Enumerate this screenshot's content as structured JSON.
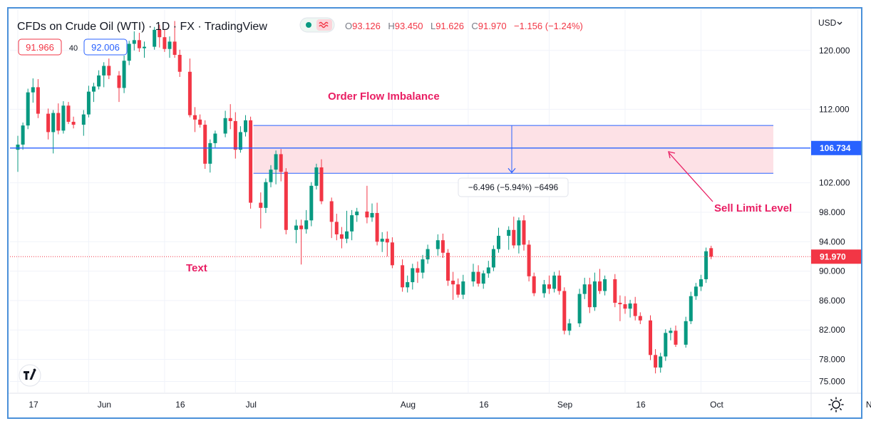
{
  "header": {
    "title": "CFDs on Crude Oil (WTI) · 1D · FX · TradingView",
    "o_label": "O",
    "o_value": "93.126",
    "h_label": "H",
    "h_value": "93.450",
    "l_label": "L",
    "l_value": "91.626",
    "c_label": "C",
    "c_value": "91.970",
    "change": "−1.156 (−1.24%)",
    "sell_price": "91.966",
    "spread": "40",
    "buy_price": "92.006",
    "currency": "USD",
    "live_icon": "live-dot-icon",
    "wave_icon": "wave-icon"
  },
  "colors": {
    "up": "#089981",
    "down": "#f23645",
    "zone_fill": "#fde1e6",
    "zone_line": "#2962ff",
    "annotation": "#e91e63",
    "frame": "#4a90d9"
  },
  "annotations": {
    "zone_label": "Order Flow Imbalance",
    "text_label": "Text",
    "sell_limit_label": "Sell Limit Level",
    "measure_label": "−6.496 (−5.94%) −6496",
    "price_line_label": "106.734",
    "last_price_label": "91.970"
  },
  "footer": {
    "logo": "tv-logo-icon",
    "settings_icon": "gear-icon"
  },
  "chart_data": {
    "type": "candlestick",
    "ylim": [
      73.5,
      125.5
    ],
    "y_ticks": [
      "120.000",
      "112.000",
      "102.000",
      "98.000",
      "94.000",
      "90.000",
      "86.000",
      "82.000",
      "78.000",
      "75.000"
    ],
    "y_tick_values": [
      120,
      112,
      102,
      98,
      94,
      90,
      86,
      82,
      78,
      75
    ],
    "x_ticks": [
      {
        "label": "17",
        "day": 0
      },
      {
        "label": "Jun",
        "day": 14
      },
      {
        "label": "16",
        "day": 29
      },
      {
        "label": "Jul",
        "day": 43
      },
      {
        "label": "Aug",
        "day": 74
      },
      {
        "label": "16",
        "day": 89
      },
      {
        "label": "Sep",
        "day": 105
      },
      {
        "label": "16",
        "day": 120
      },
      {
        "label": "Oct",
        "day": 135
      },
      {
        "label": "Nov",
        "day": 166
      }
    ],
    "zone": {
      "top": 109.8,
      "bottom": 103.3,
      "start_day": 46,
      "end_day": 160
    },
    "price_line": 106.734,
    "last_price": 91.97,
    "candles": [
      {
        "day": 0,
        "o": 106.5,
        "h": 108.4,
        "l": 103.5,
        "c": 107.2
      },
      {
        "day": 1,
        "o": 107.2,
        "h": 110.2,
        "l": 106.5,
        "c": 109.8
      },
      {
        "day": 2,
        "o": 109.8,
        "h": 114.8,
        "l": 109.3,
        "c": 114.3
      },
      {
        "day": 3,
        "o": 114.3,
        "h": 116.2,
        "l": 112.9,
        "c": 115.0
      },
      {
        "day": 4,
        "o": 115.0,
        "h": 116.1,
        "l": 110.8,
        "c": 111.4
      },
      {
        "day": 6,
        "o": 111.4,
        "h": 112.1,
        "l": 107.9,
        "c": 108.9
      },
      {
        "day": 7,
        "o": 108.9,
        "h": 111.9,
        "l": 106.0,
        "c": 111.5
      },
      {
        "day": 8,
        "o": 111.5,
        "h": 112.8,
        "l": 108.6,
        "c": 109.1
      },
      {
        "day": 9,
        "o": 109.1,
        "h": 113.1,
        "l": 108.7,
        "c": 112.5
      },
      {
        "day": 10,
        "o": 112.5,
        "h": 113.0,
        "l": 110.0,
        "c": 110.3
      },
      {
        "day": 11,
        "o": 110.3,
        "h": 111.0,
        "l": 109.4,
        "c": 109.9
      },
      {
        "day": 13,
        "o": 109.9,
        "h": 111.9,
        "l": 108.4,
        "c": 111.3
      },
      {
        "day": 14,
        "o": 111.3,
        "h": 115.2,
        "l": 110.9,
        "c": 114.4
      },
      {
        "day": 15,
        "o": 114.4,
        "h": 115.6,
        "l": 113.0,
        "c": 115.1
      },
      {
        "day": 16,
        "o": 115.1,
        "h": 117.3,
        "l": 114.7,
        "c": 116.6
      },
      {
        "day": 17,
        "o": 116.6,
        "h": 118.4,
        "l": 115.0,
        "c": 117.9
      },
      {
        "day": 18,
        "o": 117.9,
        "h": 118.9,
        "l": 116.1,
        "c": 116.6
      },
      {
        "day": 20,
        "o": 116.6,
        "h": 117.2,
        "l": 113.0,
        "c": 114.9
      },
      {
        "day": 21,
        "o": 114.9,
        "h": 119.3,
        "l": 114.2,
        "c": 118.6
      },
      {
        "day": 22,
        "o": 118.6,
        "h": 121.3,
        "l": 118.0,
        "c": 120.9
      },
      {
        "day": 23,
        "o": 120.9,
        "h": 122.6,
        "l": 120.0,
        "c": 121.4
      },
      {
        "day": 24,
        "o": 121.4,
        "h": 122.4,
        "l": 119.8,
        "c": 120.3
      },
      {
        "day": 25,
        "o": 120.3,
        "h": 121.2,
        "l": 119.0,
        "c": 120.5
      },
      {
        "day": 27,
        "o": 120.5,
        "h": 123.2,
        "l": 120.1,
        "c": 122.8
      },
      {
        "day": 28,
        "o": 122.8,
        "h": 123.5,
        "l": 120.4,
        "c": 121.8
      },
      {
        "day": 29,
        "o": 121.8,
        "h": 122.9,
        "l": 119.8,
        "c": 120.2
      },
      {
        "day": 30,
        "o": 120.2,
        "h": 121.9,
        "l": 119.0,
        "c": 121.2
      },
      {
        "day": 31,
        "o": 121.2,
        "h": 124.0,
        "l": 119.0,
        "c": 119.4
      },
      {
        "day": 32,
        "o": 119.4,
        "h": 120.1,
        "l": 116.4,
        "c": 117.1
      },
      {
        "day": 34,
        "o": 117.1,
        "h": 118.9,
        "l": 110.9,
        "c": 111.2
      },
      {
        "day": 35,
        "o": 111.2,
        "h": 112.3,
        "l": 108.9,
        "c": 110.6
      },
      {
        "day": 36,
        "o": 110.6,
        "h": 111.3,
        "l": 109.5,
        "c": 109.9
      },
      {
        "day": 37,
        "o": 109.9,
        "h": 110.5,
        "l": 103.9,
        "c": 104.6
      },
      {
        "day": 38,
        "o": 104.6,
        "h": 107.9,
        "l": 103.4,
        "c": 107.4
      },
      {
        "day": 39,
        "o": 107.4,
        "h": 109.1,
        "l": 106.8,
        "c": 108.7
      },
      {
        "day": 41,
        "o": 108.7,
        "h": 111.8,
        "l": 108.2,
        "c": 110.8
      },
      {
        "day": 42,
        "o": 110.8,
        "h": 112.7,
        "l": 109.3,
        "c": 110.4
      },
      {
        "day": 43,
        "o": 110.4,
        "h": 111.6,
        "l": 105.3,
        "c": 106.5
      },
      {
        "day": 44,
        "o": 106.5,
        "h": 109.7,
        "l": 106.1,
        "c": 108.9
      },
      {
        "day": 45,
        "o": 108.9,
        "h": 111.2,
        "l": 108.3,
        "c": 110.5
      },
      {
        "day": 46,
        "o": 110.5,
        "h": 111.0,
        "l": 98.5,
        "c": 99.3
      },
      {
        "day": 48,
        "o": 99.3,
        "h": 100.7,
        "l": 95.8,
        "c": 98.6
      },
      {
        "day": 49,
        "o": 98.6,
        "h": 102.6,
        "l": 97.9,
        "c": 102.1
      },
      {
        "day": 50,
        "o": 102.1,
        "h": 104.4,
        "l": 101.4,
        "c": 103.8
      },
      {
        "day": 51,
        "o": 103.8,
        "h": 106.4,
        "l": 101.8,
        "c": 105.9
      },
      {
        "day": 52,
        "o": 105.9,
        "h": 106.6,
        "l": 102.2,
        "c": 103.5
      },
      {
        "day": 53,
        "o": 103.5,
        "h": 104.0,
        "l": 95.0,
        "c": 95.6
      },
      {
        "day": 55,
        "o": 95.6,
        "h": 97.0,
        "l": 93.8,
        "c": 96.2
      },
      {
        "day": 56,
        "o": 96.2,
        "h": 97.0,
        "l": 90.9,
        "c": 95.7
      },
      {
        "day": 57,
        "o": 95.7,
        "h": 98.3,
        "l": 95.1,
        "c": 96.9
      },
      {
        "day": 58,
        "o": 96.9,
        "h": 102.1,
        "l": 96.1,
        "c": 101.6
      },
      {
        "day": 59,
        "o": 101.6,
        "h": 104.6,
        "l": 101.1,
        "c": 104.1
      },
      {
        "day": 60,
        "o": 104.1,
        "h": 105.2,
        "l": 99.1,
        "c": 99.5
      },
      {
        "day": 62,
        "o": 99.5,
        "h": 100.0,
        "l": 94.5,
        "c": 96.7
      },
      {
        "day": 63,
        "o": 96.7,
        "h": 97.8,
        "l": 94.2,
        "c": 95.0
      },
      {
        "day": 64,
        "o": 95.0,
        "h": 96.0,
        "l": 93.1,
        "c": 94.4
      },
      {
        "day": 65,
        "o": 94.4,
        "h": 98.2,
        "l": 93.8,
        "c": 95.4
      },
      {
        "day": 66,
        "o": 95.4,
        "h": 98.3,
        "l": 94.2,
        "c": 97.6
      },
      {
        "day": 67,
        "o": 97.6,
        "h": 98.6,
        "l": 96.7,
        "c": 98.1
      },
      {
        "day": 69,
        "o": 98.1,
        "h": 101.6,
        "l": 96.5,
        "c": 97.3
      },
      {
        "day": 70,
        "o": 97.3,
        "h": 99.2,
        "l": 96.7,
        "c": 97.9
      },
      {
        "day": 71,
        "o": 97.9,
        "h": 99.3,
        "l": 93.5,
        "c": 94.0
      },
      {
        "day": 72,
        "o": 94.0,
        "h": 95.3,
        "l": 92.6,
        "c": 94.4
      },
      {
        "day": 73,
        "o": 94.4,
        "h": 95.4,
        "l": 92.0,
        "c": 93.9
      },
      {
        "day": 74,
        "o": 93.9,
        "h": 94.6,
        "l": 90.4,
        "c": 90.8
      },
      {
        "day": 76,
        "o": 90.8,
        "h": 91.6,
        "l": 87.2,
        "c": 87.8
      },
      {
        "day": 77,
        "o": 87.8,
        "h": 89.4,
        "l": 87.1,
        "c": 88.5
      },
      {
        "day": 78,
        "o": 88.5,
        "h": 91.0,
        "l": 87.5,
        "c": 90.4
      },
      {
        "day": 79,
        "o": 90.4,
        "h": 91.3,
        "l": 88.4,
        "c": 89.8
      },
      {
        "day": 80,
        "o": 89.8,
        "h": 92.2,
        "l": 89.0,
        "c": 91.6
      },
      {
        "day": 81,
        "o": 91.6,
        "h": 93.6,
        "l": 91.0,
        "c": 93.0
      },
      {
        "day": 83,
        "o": 93.0,
        "h": 95.0,
        "l": 92.1,
        "c": 94.2
      },
      {
        "day": 84,
        "o": 94.2,
        "h": 95.1,
        "l": 91.8,
        "c": 92.5
      },
      {
        "day": 85,
        "o": 92.5,
        "h": 93.0,
        "l": 88.0,
        "c": 88.7
      },
      {
        "day": 86,
        "o": 88.7,
        "h": 89.9,
        "l": 86.1,
        "c": 88.2
      },
      {
        "day": 87,
        "o": 88.2,
        "h": 89.0,
        "l": 86.4,
        "c": 86.8
      },
      {
        "day": 88,
        "o": 86.8,
        "h": 89.5,
        "l": 86.2,
        "c": 88.6
      },
      {
        "day": 90,
        "o": 88.6,
        "h": 91.0,
        "l": 87.9,
        "c": 89.9
      },
      {
        "day": 91,
        "o": 89.9,
        "h": 90.8,
        "l": 87.9,
        "c": 88.3
      },
      {
        "day": 92,
        "o": 88.3,
        "h": 90.1,
        "l": 87.6,
        "c": 89.7
      },
      {
        "day": 93,
        "o": 89.7,
        "h": 91.4,
        "l": 89.1,
        "c": 90.5
      },
      {
        "day": 94,
        "o": 90.5,
        "h": 93.5,
        "l": 90.0,
        "c": 93.0
      },
      {
        "day": 95,
        "o": 93.0,
        "h": 95.9,
        "l": 92.5,
        "c": 94.8
      },
      {
        "day": 97,
        "o": 94.8,
        "h": 96.1,
        "l": 92.9,
        "c": 95.6
      },
      {
        "day": 98,
        "o": 95.6,
        "h": 97.4,
        "l": 93.1,
        "c": 93.5
      },
      {
        "day": 99,
        "o": 93.5,
        "h": 97.3,
        "l": 92.4,
        "c": 96.9
      },
      {
        "day": 100,
        "o": 96.9,
        "h": 97.6,
        "l": 92.8,
        "c": 93.6
      },
      {
        "day": 101,
        "o": 93.6,
        "h": 94.2,
        "l": 88.6,
        "c": 89.3
      },
      {
        "day": 102,
        "o": 89.3,
        "h": 89.8,
        "l": 86.6,
        "c": 87.0
      },
      {
        "day": 104,
        "o": 87.0,
        "h": 88.8,
        "l": 86.4,
        "c": 88.2
      },
      {
        "day": 105,
        "o": 88.2,
        "h": 89.4,
        "l": 86.9,
        "c": 87.6
      },
      {
        "day": 106,
        "o": 87.6,
        "h": 89.9,
        "l": 87.1,
        "c": 89.4
      },
      {
        "day": 107,
        "o": 89.4,
        "h": 90.1,
        "l": 86.8,
        "c": 87.3
      },
      {
        "day": 108,
        "o": 87.3,
        "h": 87.8,
        "l": 81.4,
        "c": 81.9
      },
      {
        "day": 109,
        "o": 81.9,
        "h": 83.5,
        "l": 81.3,
        "c": 82.9
      },
      {
        "day": 111,
        "o": 82.9,
        "h": 87.6,
        "l": 82.4,
        "c": 86.9
      },
      {
        "day": 112,
        "o": 86.9,
        "h": 89.1,
        "l": 86.2,
        "c": 88.2
      },
      {
        "day": 113,
        "o": 88.2,
        "h": 89.1,
        "l": 84.3,
        "c": 85.1
      },
      {
        "day": 114,
        "o": 85.1,
        "h": 89.8,
        "l": 84.6,
        "c": 88.6
      },
      {
        "day": 115,
        "o": 88.6,
        "h": 90.3,
        "l": 86.9,
        "c": 87.3
      },
      {
        "day": 116,
        "o": 87.3,
        "h": 89.4,
        "l": 86.7,
        "c": 88.9
      },
      {
        "day": 118,
        "o": 88.9,
        "h": 89.6,
        "l": 85.1,
        "c": 85.7
      },
      {
        "day": 119,
        "o": 85.7,
        "h": 86.7,
        "l": 83.2,
        "c": 85.5
      },
      {
        "day": 120,
        "o": 85.5,
        "h": 86.6,
        "l": 84.2,
        "c": 84.9
      },
      {
        "day": 121,
        "o": 84.9,
        "h": 86.1,
        "l": 83.7,
        "c": 85.6
      },
      {
        "day": 122,
        "o": 85.6,
        "h": 86.5,
        "l": 83.3,
        "c": 83.9
      },
      {
        "day": 123,
        "o": 83.9,
        "h": 84.4,
        "l": 82.8,
        "c": 83.3
      },
      {
        "day": 125,
        "o": 83.3,
        "h": 84.0,
        "l": 77.9,
        "c": 78.6
      },
      {
        "day": 126,
        "o": 78.6,
        "h": 79.4,
        "l": 76.1,
        "c": 76.9
      },
      {
        "day": 127,
        "o": 76.9,
        "h": 78.9,
        "l": 76.2,
        "c": 78.4
      },
      {
        "day": 128,
        "o": 78.4,
        "h": 82.1,
        "l": 77.8,
        "c": 81.6
      },
      {
        "day": 129,
        "o": 81.6,
        "h": 82.3,
        "l": 80.6,
        "c": 81.9
      },
      {
        "day": 130,
        "o": 81.9,
        "h": 82.6,
        "l": 79.7,
        "c": 80.0
      },
      {
        "day": 132,
        "o": 80.0,
        "h": 83.8,
        "l": 79.6,
        "c": 83.2
      },
      {
        "day": 133,
        "o": 83.2,
        "h": 87.2,
        "l": 82.8,
        "c": 86.6
      },
      {
        "day": 134,
        "o": 86.6,
        "h": 88.4,
        "l": 86.1,
        "c": 87.9
      },
      {
        "day": 135,
        "o": 87.9,
        "h": 89.5,
        "l": 87.3,
        "c": 88.9
      },
      {
        "day": 136,
        "o": 88.9,
        "h": 93.2,
        "l": 88.4,
        "c": 92.7
      },
      {
        "day": 137,
        "o": 93.126,
        "h": 93.45,
        "l": 91.626,
        "c": 91.97
      }
    ]
  }
}
